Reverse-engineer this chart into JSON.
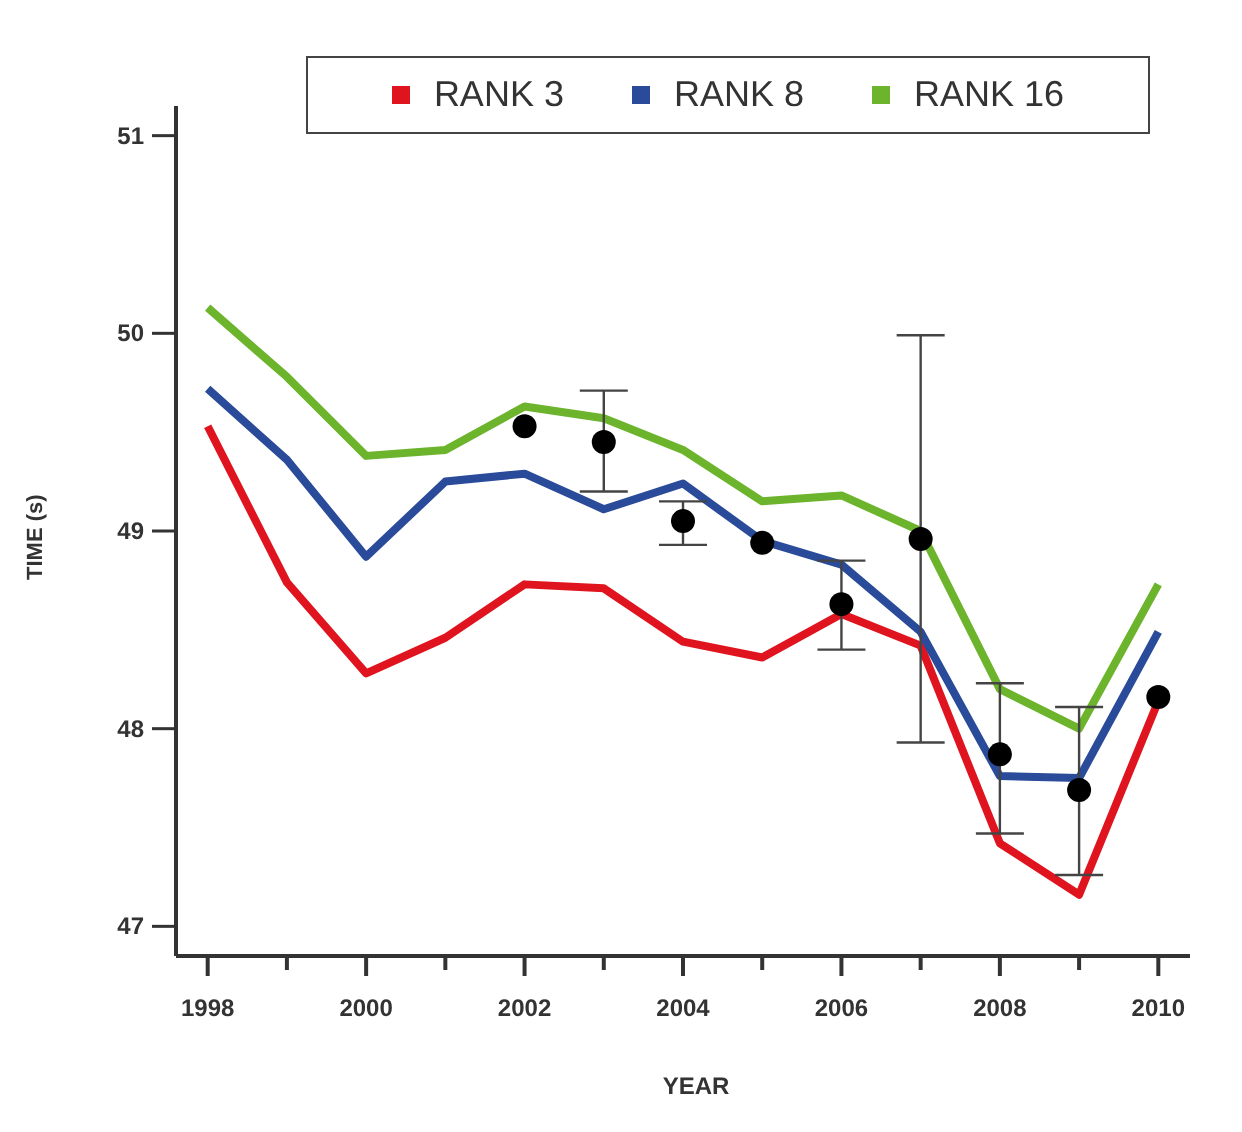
{
  "chart_data": {
    "type": "line",
    "xlabel": "YEAR",
    "ylabel": "TIME (s)",
    "x": [
      1998,
      1999,
      2000,
      2001,
      2002,
      2003,
      2004,
      2005,
      2006,
      2007,
      2008,
      2009,
      2010
    ],
    "series": [
      {
        "name": "RANK 3",
        "color": "#e0141e",
        "values": [
          49.53,
          48.74,
          48.28,
          48.46,
          48.73,
          48.71,
          48.44,
          48.36,
          48.58,
          48.42,
          47.42,
          47.16,
          48.14
        ]
      },
      {
        "name": "RANK 8",
        "color": "#2a4a9a",
        "values": [
          49.72,
          49.36,
          48.87,
          49.25,
          49.29,
          49.11,
          49.24,
          48.95,
          48.83,
          48.49,
          47.76,
          47.75,
          48.49
        ]
      },
      {
        "name": "RANK 16",
        "color": "#6cb42c",
        "values": [
          50.13,
          49.78,
          49.38,
          49.41,
          49.63,
          49.57,
          49.41,
          49.15,
          49.18,
          49.0,
          48.2,
          48.0,
          48.73
        ]
      },
      {
        "type": "scatter",
        "color": "#000000",
        "marker": "circle",
        "values": [
          null,
          null,
          null,
          null,
          49.53,
          49.45,
          49.05,
          48.94,
          48.63,
          48.96,
          47.87,
          47.69,
          48.16
        ],
        "errors": [
          null,
          null,
          null,
          null,
          null,
          [
            49.2,
            49.71
          ],
          [
            48.93,
            49.15
          ],
          null,
          [
            48.4,
            48.85
          ],
          [
            47.93,
            49.99
          ],
          [
            47.47,
            48.23
          ],
          [
            47.26,
            48.11
          ],
          null
        ]
      }
    ],
    "xlim": [
      1997.6,
      2010.4
    ],
    "ylim": [
      46.85,
      51.15
    ],
    "xticks": [
      {
        "value": 1998,
        "label": "1998"
      },
      {
        "value": 1999,
        "label": null
      },
      {
        "value": 2000,
        "label": "2000"
      },
      {
        "value": 2001,
        "label": null
      },
      {
        "value": 2002,
        "label": "2002"
      },
      {
        "value": 2003,
        "label": null
      },
      {
        "value": 2004,
        "label": "2004"
      },
      {
        "value": 2005,
        "label": null
      },
      {
        "value": 2006,
        "label": "2006"
      },
      {
        "value": 2007,
        "label": null
      },
      {
        "value": 2008,
        "label": "2008"
      },
      {
        "value": 2009,
        "label": null
      },
      {
        "value": 2010,
        "label": "2010"
      }
    ],
    "yticks": [
      47,
      48,
      49,
      50,
      51
    ],
    "legend": "top",
    "marker": "none",
    "line_style": "solid"
  }
}
